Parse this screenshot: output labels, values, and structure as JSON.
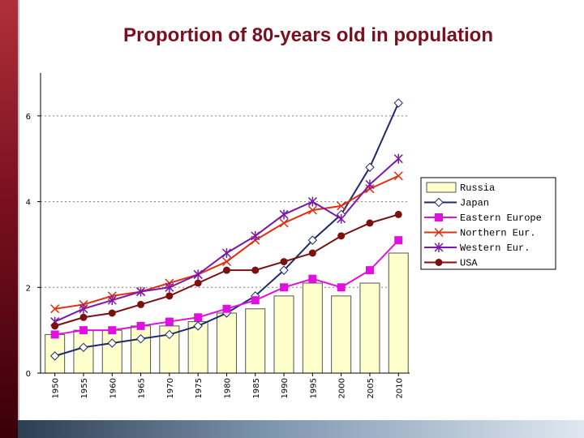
{
  "title": "Proportion of 80-years old in population",
  "colors": {
    "accent": "#7a0f1f",
    "russia_fill": "#ffffcc",
    "russia_stroke": "#555555",
    "japan": "#1f2a6e",
    "eastern": "#e010e0",
    "northern": "#e03010",
    "western": "#7a1aa8",
    "usa": "#7a1010"
  },
  "chart_data": {
    "type": "bar",
    "title": "Proportion of 80-years old in population",
    "xlabel": "",
    "ylabel": "",
    "ylim": [
      0,
      7
    ],
    "yticks": [
      0,
      2,
      4,
      6
    ],
    "categories": [
      "1950",
      "1955",
      "1960",
      "1965",
      "1970",
      "1975",
      "1980",
      "1985",
      "1990",
      "1995",
      "2000",
      "2005",
      "2010"
    ],
    "series": [
      {
        "name": "Russia",
        "type": "bar",
        "marker": "bar",
        "color_key": "russia_fill",
        "values": [
          0.9,
          1.0,
          1.0,
          1.1,
          1.1,
          1.2,
          1.4,
          1.5,
          1.8,
          2.1,
          1.8,
          2.1,
          2.8
        ]
      },
      {
        "name": "Japan",
        "type": "line",
        "marker": "diamond",
        "color_key": "japan",
        "values": [
          0.4,
          0.6,
          0.7,
          0.8,
          0.9,
          1.1,
          1.4,
          1.8,
          2.4,
          3.1,
          3.7,
          4.8,
          6.3
        ]
      },
      {
        "name": "Eastern Europe",
        "type": "line",
        "marker": "square",
        "color_key": "eastern",
        "values": [
          0.9,
          1.0,
          1.0,
          1.1,
          1.2,
          1.3,
          1.5,
          1.7,
          2.0,
          2.2,
          2.0,
          2.4,
          3.1
        ]
      },
      {
        "name": "Northern Eur.",
        "type": "line",
        "marker": "x",
        "color_key": "northern",
        "values": [
          1.5,
          1.6,
          1.8,
          1.9,
          2.1,
          2.3,
          2.6,
          3.1,
          3.5,
          3.8,
          3.9,
          4.3,
          4.6
        ]
      },
      {
        "name": "Western Eur.",
        "type": "line",
        "marker": "star",
        "color_key": "western",
        "values": [
          1.2,
          1.5,
          1.7,
          1.9,
          2.0,
          2.3,
          2.8,
          3.2,
          3.7,
          4.0,
          3.6,
          4.4,
          5.0
        ]
      },
      {
        "name": "USA",
        "type": "line",
        "marker": "circle",
        "color_key": "usa",
        "values": [
          1.1,
          1.3,
          1.4,
          1.6,
          1.8,
          2.1,
          2.4,
          2.4,
          2.6,
          2.8,
          3.2,
          3.5,
          3.7
        ]
      }
    ],
    "legend": [
      "Russia",
      "Japan",
      "Eastern Europe",
      "Northern Eur.",
      "Western Eur.",
      "USA"
    ],
    "legend_position": "right",
    "grid": "horizontal-dashed"
  }
}
